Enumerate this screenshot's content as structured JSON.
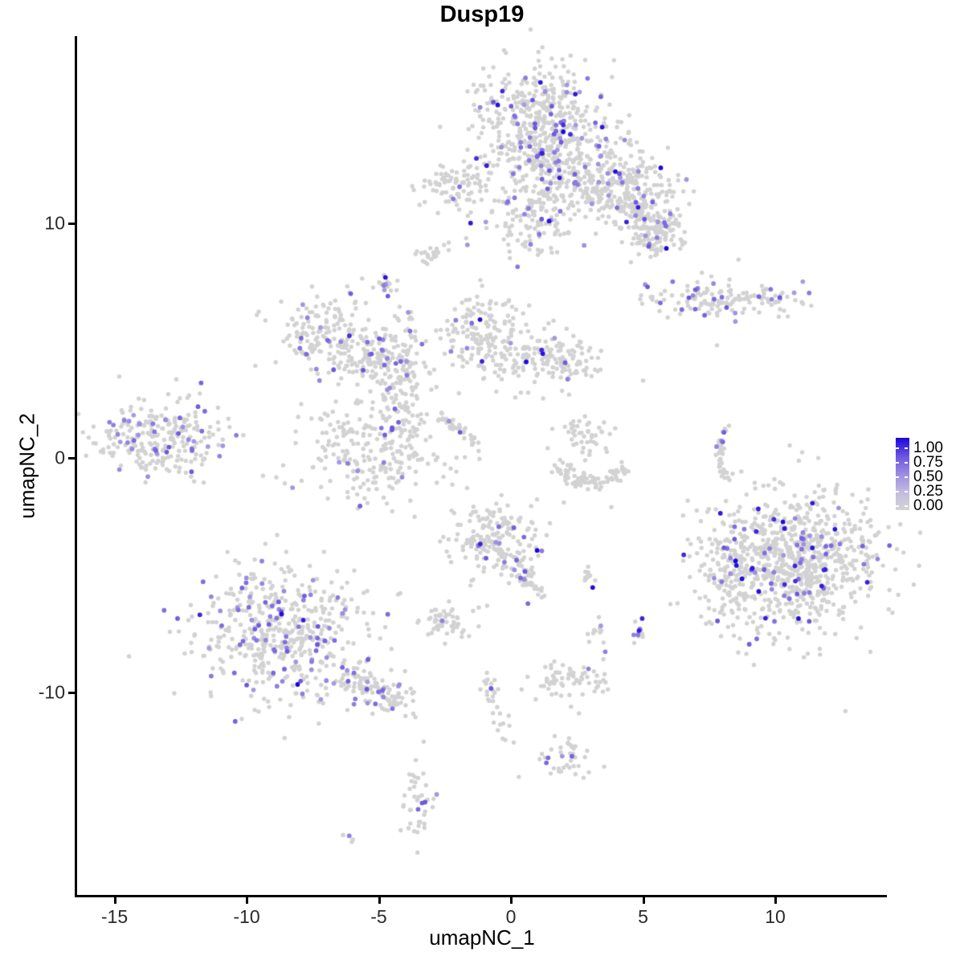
{
  "title": "Dusp19",
  "chart_data": {
    "type": "scatter",
    "title": "Dusp19",
    "xlabel": "umapNC_1",
    "ylabel": "umapNC_2",
    "x_ticks": [
      -15,
      -10,
      -5,
      0,
      5,
      10
    ],
    "y_ticks": [
      10,
      0,
      -10
    ],
    "xlim": [
      -16.4,
      14.2
    ],
    "ylim": [
      -18.7,
      18.0
    ],
    "grid": false,
    "legend_position": "right",
    "legend_labels": [
      {
        "text": "1.00",
        "value": 1.0
      },
      {
        "text": "0.75",
        "value": 0.75
      },
      {
        "text": "0.50",
        "value": 0.5
      },
      {
        "text": "0.25",
        "value": 0.25
      },
      {
        "text": "0.00",
        "value": 0.0
      }
    ],
    "colors": {
      "zero_expression": "#D2D2D2",
      "gradient_stops": [
        [
          0,
          "#D3D3D3"
        ],
        [
          0.25,
          "#C2BBE2"
        ],
        [
          0.5,
          "#9C8CE0"
        ],
        [
          0.75,
          "#6C53E0"
        ],
        [
          1,
          "#1B06DD"
        ]
      ],
      "axis": "#000000",
      "background": "#FFFFFF"
    },
    "seed": 7,
    "clusters": [
      {
        "name": "top-main-upper",
        "type": "gauss",
        "cx": 1.0,
        "cy": 14.4,
        "sx": 1.15,
        "sy": 1.2,
        "n": 430,
        "frac": 0.1,
        "darkFrac": 0.15
      },
      {
        "name": "top-main-lower",
        "type": "gauss",
        "cx": 2.3,
        "cy": 12.3,
        "sx": 1.2,
        "sy": 1.0,
        "n": 280,
        "frac": 0.1,
        "darkFrac": 0.15
      },
      {
        "name": "top-arm",
        "type": "line",
        "x1": 3.1,
        "y1": 11.5,
        "x2": 6.1,
        "y2": 9.6,
        "jitter": 0.45,
        "n": 170,
        "frac": 0.07,
        "darkFrac": 0.2
      },
      {
        "name": "top-right-blob",
        "type": "gauss",
        "cx": 5.0,
        "cy": 11.7,
        "sx": 0.75,
        "sy": 0.65,
        "n": 110,
        "frac": 0.08,
        "darkFrac": 0.2
      },
      {
        "name": "top-arm-end",
        "type": "gauss",
        "cx": 5.3,
        "cy": 9.6,
        "sx": 0.55,
        "sy": 0.55,
        "n": 70,
        "frac": 0.06,
        "darkFrac": 0.3
      },
      {
        "name": "top-below",
        "type": "gauss",
        "cx": 0.85,
        "cy": 10.2,
        "sx": 0.85,
        "sy": 0.8,
        "n": 130,
        "frac": 0.08,
        "darkFrac": 0.1
      },
      {
        "name": "upper-left-small",
        "type": "gauss",
        "cx": -2.1,
        "cy": 11.6,
        "sx": 0.75,
        "sy": 0.5,
        "n": 90,
        "frac": 0.03,
        "darkFrac": 0
      },
      {
        "name": "tiny-blob",
        "type": "gauss",
        "cx": -3.1,
        "cy": 8.7,
        "sx": 0.33,
        "sy": 0.28,
        "n": 22,
        "frac": 0,
        "darkFrac": 0
      },
      {
        "name": "small-blue-blob",
        "type": "gauss",
        "cx": -4.65,
        "cy": 7.4,
        "sx": 0.26,
        "sy": 0.3,
        "n": 16,
        "frac": 0.3,
        "darkFrac": 0.35
      },
      {
        "name": "right-elongated",
        "type": "gauss",
        "cx": 8.0,
        "cy": 6.8,
        "sx": 1.5,
        "sy": 0.42,
        "n": 150,
        "frac": 0.13,
        "darkFrac": 0.15
      },
      {
        "name": "mid-left-crescent",
        "type": "gauss",
        "cx": -6.75,
        "cy": 5.45,
        "sx": 1.1,
        "sy": 0.75,
        "n": 170,
        "frac": 0.09,
        "darkFrac": 0.05
      },
      {
        "name": "connector",
        "type": "gauss",
        "cx": -5.0,
        "cy": 4.15,
        "sx": 0.95,
        "sy": 0.5,
        "n": 130,
        "frac": 0.1,
        "darkFrac": 0.05
      },
      {
        "name": "vert-strand",
        "type": "gauss",
        "cx": -4.15,
        "cy": 2.8,
        "sx": 0.45,
        "sy": 0.85,
        "n": 75,
        "frac": 0.06,
        "darkFrac": 0
      },
      {
        "name": "central-round",
        "type": "gauss",
        "cx": -5.05,
        "cy": 0.5,
        "sx": 1.4,
        "sy": 1.2,
        "n": 260,
        "frac": 0.07,
        "darkFrac": 0.05
      },
      {
        "name": "thread-up",
        "type": "gauss",
        "cx": -4.0,
        "cy": 5.7,
        "sx": 0.25,
        "sy": 0.5,
        "n": 14,
        "frac": 0.1,
        "darkFrac": 0
      },
      {
        "name": "mid-cluster-a",
        "type": "gauss",
        "cx": -1.0,
        "cy": 5.3,
        "sx": 0.85,
        "sy": 0.85,
        "n": 150,
        "frac": 0.05,
        "darkFrac": 0.1
      },
      {
        "name": "mid-cluster-b",
        "type": "gauss",
        "cx": 0.95,
        "cy": 4.25,
        "sx": 1.0,
        "sy": 0.65,
        "n": 130,
        "frac": 0.04,
        "darkFrac": 0.1
      },
      {
        "name": "mid-bridge",
        "type": "gauss",
        "cx": 2.45,
        "cy": 3.95,
        "sx": 0.5,
        "sy": 0.4,
        "n": 35,
        "frac": 0.03,
        "darkFrac": 0
      },
      {
        "name": "far-left",
        "type": "gauss",
        "cx": -13.3,
        "cy": 0.85,
        "sx": 1.25,
        "sy": 0.85,
        "n": 260,
        "frac": 0.16,
        "darkFrac": 0
      },
      {
        "name": "diag-strand",
        "type": "line",
        "x1": -2.65,
        "y1": 1.85,
        "x2": -1.15,
        "y2": 0.5,
        "jitter": 0.12,
        "n": 36,
        "frac": 0.11,
        "darkFrac": 0
      },
      {
        "name": "center-small-upper",
        "type": "gauss",
        "cx": 2.85,
        "cy": 0.9,
        "sx": 0.5,
        "sy": 0.45,
        "n": 45,
        "frac": 0,
        "darkFrac": 0
      },
      {
        "name": "center-arc",
        "type": "arc",
        "cx": 3.05,
        "cy": 0.0,
        "rx": 1.25,
        "ry": 1.0,
        "a0": 200,
        "a1": 340,
        "jitter": 0.18,
        "n": 85,
        "frac": 0,
        "darkFrac": 0
      },
      {
        "name": "right-arc",
        "type": "arc",
        "cx": 8.6,
        "cy": 0.2,
        "rx": 0.75,
        "ry": 1.2,
        "a0": 120,
        "a1": 240,
        "jitter": 0.1,
        "n": 38,
        "frac": 0.11,
        "darkFrac": 0
      },
      {
        "name": "big-right",
        "type": "gauss",
        "cx": 10.75,
        "cy": -4.4,
        "sx": 1.5,
        "sy": 1.5,
        "n": 820,
        "frac": 0.07,
        "darkFrac": 0.25
      },
      {
        "name": "big-right-west",
        "type": "gauss",
        "cx": 8.25,
        "cy": -4.6,
        "sx": 0.7,
        "sy": 1.3,
        "n": 110,
        "frac": 0.05,
        "darkFrac": 0.1
      },
      {
        "name": "center-bottom",
        "type": "gauss",
        "cx": -0.55,
        "cy": -3.55,
        "sx": 0.85,
        "sy": 0.8,
        "n": 185,
        "frac": 0.08,
        "darkFrac": 0.12
      },
      {
        "name": "center-bottom-tail",
        "type": "line",
        "x1": 0.2,
        "y1": -4.45,
        "x2": 1.05,
        "y2": -5.7,
        "jitter": 0.25,
        "n": 40,
        "frac": 0.07,
        "darkFrac": 0
      },
      {
        "name": "tiny-dark",
        "type": "gauss",
        "cx": 2.8,
        "cy": -5.1,
        "sx": 0.25,
        "sy": 0.18,
        "n": 11,
        "frac": 0.12,
        "darkFrac": 0.9
      },
      {
        "name": "small-left",
        "type": "gauss",
        "cx": -2.35,
        "cy": -6.95,
        "sx": 0.55,
        "sy": 0.38,
        "n": 55,
        "frac": 0.04,
        "darkFrac": 0
      },
      {
        "name": "bottom-left-main",
        "type": "gauss",
        "cx": -8.6,
        "cy": -7.6,
        "sx": 1.7,
        "sy": 1.45,
        "n": 520,
        "frac": 0.15,
        "darkFrac": 0.03
      },
      {
        "name": "bottom-left-tail",
        "type": "line",
        "x1": -6.15,
        "y1": -9.3,
        "x2": -3.9,
        "y2": -10.6,
        "jitter": 0.35,
        "n": 110,
        "frac": 0.13,
        "darkFrac": 0.02
      },
      {
        "name": "small-pair",
        "type": "gauss",
        "cx": 3.25,
        "cy": -7.75,
        "sx": 0.22,
        "sy": 0.33,
        "n": 13,
        "frac": 0.15,
        "darkFrac": 0
      },
      {
        "name": "tight-stack",
        "type": "gauss",
        "cx": 4.9,
        "cy": -7.45,
        "sx": 0.18,
        "sy": 0.3,
        "n": 13,
        "frac": 0.35,
        "darkFrac": 0.4
      },
      {
        "name": "chain",
        "type": "line",
        "x1": -1.0,
        "y1": -9.35,
        "x2": -0.15,
        "y2": -11.9,
        "jitter": 0.2,
        "n": 30,
        "frac": 0.08,
        "darkFrac": 0
      },
      {
        "name": "small-right-of-chain",
        "type": "gauss",
        "cx": 2.35,
        "cy": -9.45,
        "sx": 0.75,
        "sy": 0.45,
        "n": 65,
        "frac": 0.09,
        "darkFrac": 0
      },
      {
        "name": "bottom-blob",
        "type": "gauss",
        "cx": 2.05,
        "cy": -12.7,
        "sx": 0.55,
        "sy": 0.45,
        "n": 40,
        "frac": 0.03,
        "darkFrac": 0
      },
      {
        "name": "bottom-vert",
        "type": "gauss",
        "cx": -3.5,
        "cy": -14.6,
        "sx": 0.35,
        "sy": 0.85,
        "n": 40,
        "frac": 0.14,
        "darkFrac": 0
      },
      {
        "name": "tiny-bottom",
        "type": "gauss",
        "cx": -6.1,
        "cy": -16.2,
        "sx": 0.15,
        "sy": 0.12,
        "n": 4,
        "frac": 0.3,
        "darkFrac": 0
      }
    ],
    "singles": [
      [
        3.8,
        -2.1
      ],
      [
        7.8,
        4.8
      ],
      [
        2.2,
        2.7
      ],
      [
        -0.2,
        10.0
      ],
      [
        2.0,
        -1.9
      ],
      [
        5.0,
        3.3
      ],
      [
        -3.3,
        -12.1
      ],
      [
        0.3,
        -13.6
      ],
      [
        6.3,
        -6.2
      ],
      [
        -0.9,
        -6.3
      ]
    ]
  }
}
